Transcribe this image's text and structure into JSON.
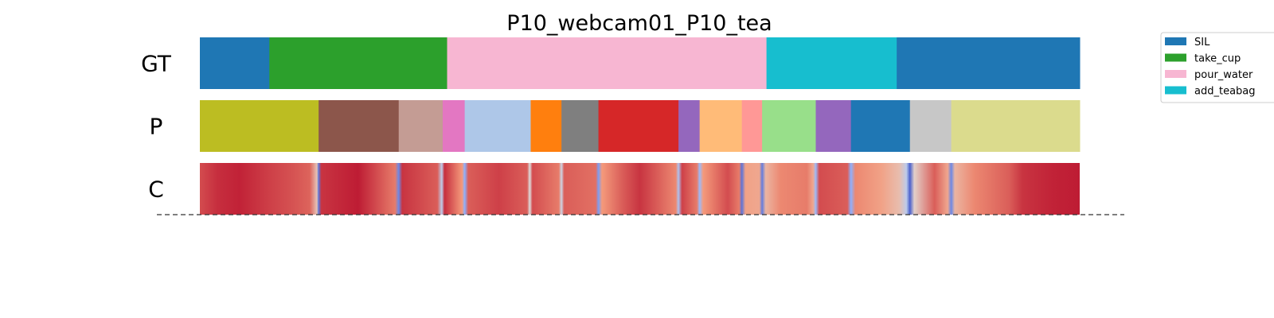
{
  "chart_data": {
    "type": "segmentation",
    "title": "P10_webcam01_P10_tea",
    "x_range": [
      0,
      1
    ],
    "rows": [
      {
        "label": "GT",
        "segments": [
          {
            "start": 0.0,
            "end": 0.079,
            "color": "#1f77b4"
          },
          {
            "start": 0.079,
            "end": 0.281,
            "color": "#2ca02c"
          },
          {
            "start": 0.281,
            "end": 0.644,
            "color": "#f7b6d2"
          },
          {
            "start": 0.644,
            "end": 0.792,
            "color": "#17becf"
          },
          {
            "start": 0.792,
            "end": 1.0,
            "color": "#1f77b4"
          }
        ]
      },
      {
        "label": "P",
        "segments": [
          {
            "start": 0.0,
            "end": 0.135,
            "color": "#bcbd22"
          },
          {
            "start": 0.135,
            "end": 0.226,
            "color": "#8c564b"
          },
          {
            "start": 0.226,
            "end": 0.276,
            "color": "#c49c94"
          },
          {
            "start": 0.276,
            "end": 0.301,
            "color": "#e377c2"
          },
          {
            "start": 0.301,
            "end": 0.376,
            "color": "#aec7e8"
          },
          {
            "start": 0.376,
            "end": 0.411,
            "color": "#ff7f0e"
          },
          {
            "start": 0.411,
            "end": 0.453,
            "color": "#7f7f7f"
          },
          {
            "start": 0.453,
            "end": 0.544,
            "color": "#d62728"
          },
          {
            "start": 0.544,
            "end": 0.568,
            "color": "#9467bd"
          },
          {
            "start": 0.568,
            "end": 0.616,
            "color": "#ffbb78"
          },
          {
            "start": 0.616,
            "end": 0.639,
            "color": "#ff9896"
          },
          {
            "start": 0.639,
            "end": 0.7,
            "color": "#98df8a"
          },
          {
            "start": 0.7,
            "end": 0.74,
            "color": "#9467bd"
          },
          {
            "start": 0.74,
            "end": 0.807,
            "color": "#1f77b4"
          },
          {
            "start": 0.807,
            "end": 0.854,
            "color": "#c7c7c7"
          },
          {
            "start": 0.854,
            "end": 1.0,
            "color": "#dbdb8d"
          }
        ]
      },
      {
        "label": "C",
        "colormap": "coolwarm",
        "confidence": [
          {
            "x": 0.0,
            "v": 0.88
          },
          {
            "x": 0.02,
            "v": 0.93
          },
          {
            "x": 0.045,
            "v": 0.95
          },
          {
            "x": 0.08,
            "v": 0.9
          },
          {
            "x": 0.105,
            "v": 0.87
          },
          {
            "x": 0.125,
            "v": 0.84
          },
          {
            "x": 0.133,
            "v": 0.6
          },
          {
            "x": 0.135,
            "v": 0.1
          },
          {
            "x": 0.138,
            "v": 0.92
          },
          {
            "x": 0.18,
            "v": 0.96
          },
          {
            "x": 0.222,
            "v": 0.8
          },
          {
            "x": 0.226,
            "v": 0.15
          },
          {
            "x": 0.23,
            "v": 0.92
          },
          {
            "x": 0.27,
            "v": 0.85
          },
          {
            "x": 0.275,
            "v": 0.4
          },
          {
            "x": 0.278,
            "v": 0.93
          },
          {
            "x": 0.298,
            "v": 0.75
          },
          {
            "x": 0.301,
            "v": 0.25
          },
          {
            "x": 0.305,
            "v": 0.85
          },
          {
            "x": 0.34,
            "v": 0.9
          },
          {
            "x": 0.372,
            "v": 0.85
          },
          {
            "x": 0.375,
            "v": 0.5
          },
          {
            "x": 0.378,
            "v": 0.88
          },
          {
            "x": 0.408,
            "v": 0.8
          },
          {
            "x": 0.411,
            "v": 0.45
          },
          {
            "x": 0.414,
            "v": 0.85
          },
          {
            "x": 0.45,
            "v": 0.82
          },
          {
            "x": 0.453,
            "v": 0.2
          },
          {
            "x": 0.457,
            "v": 0.75
          },
          {
            "x": 0.48,
            "v": 0.85
          },
          {
            "x": 0.5,
            "v": 0.92
          },
          {
            "x": 0.541,
            "v": 0.78
          },
          {
            "x": 0.544,
            "v": 0.35
          },
          {
            "x": 0.548,
            "v": 0.9
          },
          {
            "x": 0.565,
            "v": 0.8
          },
          {
            "x": 0.568,
            "v": 0.3
          },
          {
            "x": 0.572,
            "v": 0.75
          },
          {
            "x": 0.6,
            "v": 0.88
          },
          {
            "x": 0.613,
            "v": 0.8
          },
          {
            "x": 0.616,
            "v": 0.1
          },
          {
            "x": 0.62,
            "v": 0.72
          },
          {
            "x": 0.636,
            "v": 0.7
          },
          {
            "x": 0.639,
            "v": 0.12
          },
          {
            "x": 0.643,
            "v": 0.65
          },
          {
            "x": 0.66,
            "v": 0.78
          },
          {
            "x": 0.69,
            "v": 0.8
          },
          {
            "x": 0.697,
            "v": 0.7
          },
          {
            "x": 0.7,
            "v": 0.3
          },
          {
            "x": 0.704,
            "v": 0.88
          },
          {
            "x": 0.736,
            "v": 0.85
          },
          {
            "x": 0.74,
            "v": 0.25
          },
          {
            "x": 0.745,
            "v": 0.78
          },
          {
            "x": 0.775,
            "v": 0.72
          },
          {
            "x": 0.795,
            "v": 0.62
          },
          {
            "x": 0.803,
            "v": 0.4
          },
          {
            "x": 0.807,
            "v": 0.05
          },
          {
            "x": 0.812,
            "v": 0.55
          },
          {
            "x": 0.835,
            "v": 0.85
          },
          {
            "x": 0.85,
            "v": 0.7
          },
          {
            "x": 0.854,
            "v": 0.15
          },
          {
            "x": 0.858,
            "v": 0.65
          },
          {
            "x": 0.88,
            "v": 0.78
          },
          {
            "x": 0.92,
            "v": 0.85
          },
          {
            "x": 0.935,
            "v": 0.92
          },
          {
            "x": 0.97,
            "v": 0.95
          },
          {
            "x": 1.0,
            "v": 0.96
          }
        ]
      }
    ],
    "legend": {
      "placement": "top-right",
      "entries": [
        {
          "label": "SIL",
          "color": "#1f77b4"
        },
        {
          "label": "take_cup",
          "color": "#2ca02c"
        },
        {
          "label": "pour_water",
          "color": "#f7b6d2"
        },
        {
          "label": "add_teabag",
          "color": "#17becf"
        }
      ]
    }
  }
}
